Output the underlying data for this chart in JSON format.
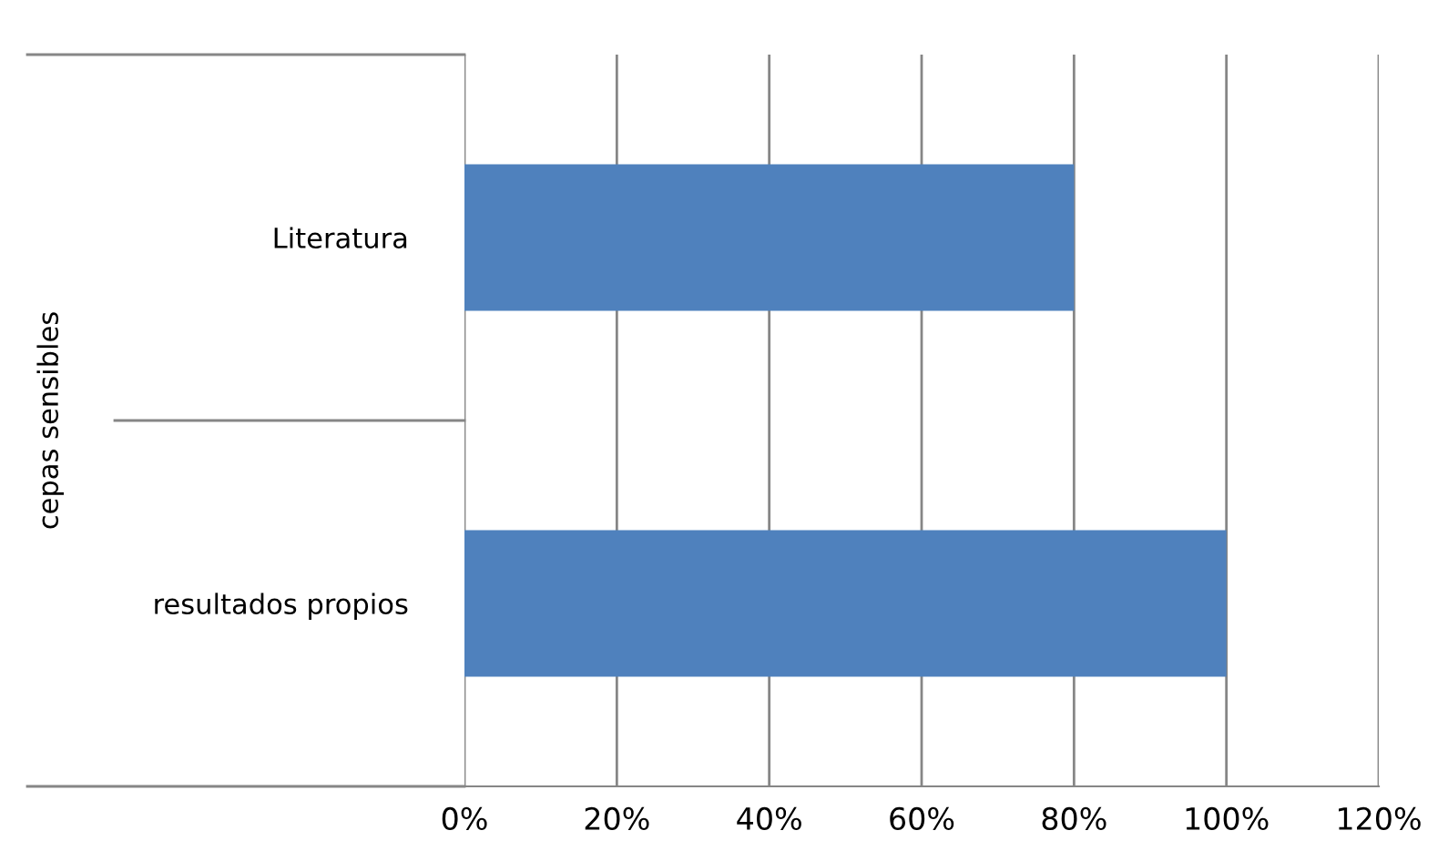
{
  "chart_data": {
    "type": "bar",
    "orientation": "horizontal",
    "ylabel": "cepas sensibles",
    "categories": [
      "Literatura",
      "resultados propios"
    ],
    "values": [
      80,
      100
    ],
    "color": "#4f81bd",
    "xlim": [
      0,
      120
    ],
    "xticks": [
      {
        "value": 0,
        "label": "0%"
      },
      {
        "value": 20,
        "label": "20%"
      },
      {
        "value": 40,
        "label": "40%"
      },
      {
        "value": 60,
        "label": "60%"
      },
      {
        "value": 80,
        "label": "80%"
      },
      {
        "value": 100,
        "label": "100%"
      },
      {
        "value": 120,
        "label": "120%"
      }
    ],
    "grid": "x",
    "legend": false
  }
}
